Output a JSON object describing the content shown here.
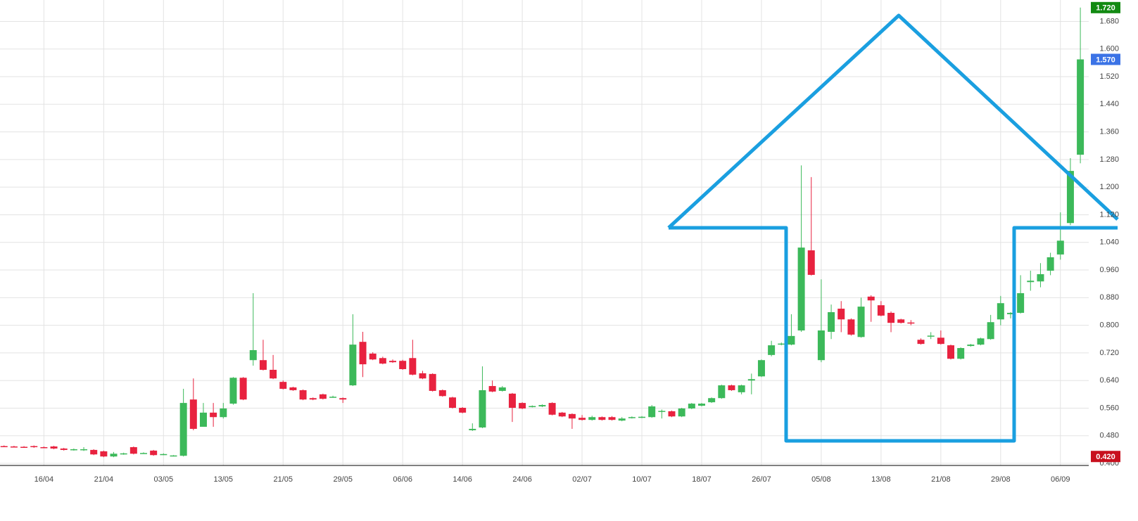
{
  "chart_data": {
    "type": "candlestick",
    "categories": [
      null,
      null,
      null,
      null,
      "16/04",
      null,
      null,
      null,
      null,
      null,
      "21/04",
      null,
      null,
      null,
      null,
      null,
      "03/05",
      null,
      null,
      null,
      null,
      null,
      "13/05",
      null,
      null,
      null,
      null,
      null,
      "21/05",
      null,
      null,
      null,
      null,
      null,
      "29/05",
      null,
      null,
      null,
      null,
      null,
      "06/06",
      null,
      null,
      null,
      null,
      null,
      "14/06",
      null,
      null,
      null,
      null,
      null,
      "24/06",
      null,
      null,
      null,
      null,
      null,
      "02/07",
      null,
      null,
      null,
      null,
      null,
      "10/07",
      null,
      null,
      null,
      null,
      null,
      "18/07",
      null,
      null,
      null,
      null,
      null,
      "26/07",
      null,
      null,
      null,
      null,
      null,
      "05/08",
      null,
      null,
      null,
      null,
      null,
      "13/08",
      null,
      null,
      null,
      null,
      null,
      "21/08",
      null,
      null,
      null,
      null,
      null,
      "29/08",
      null,
      null,
      null,
      null,
      null,
      "06/09",
      null,
      null
    ],
    "open": [
      0.45,
      0.449,
      0.448,
      0.45,
      0.447,
      0.449,
      0.443,
      0.44,
      0.44,
      0.439,
      0.435,
      0.42,
      0.427,
      0.447,
      0.43,
      0.437,
      0.426,
      0.421,
      0.422,
      0.585,
      0.506,
      0.547,
      0.534,
      0.573,
      0.648,
      0.699,
      0.699,
      0.671,
      0.636,
      0.62,
      0.612,
      0.589,
      0.6,
      0.593,
      0.589,
      0.626,
      0.752,
      0.718,
      0.705,
      0.697,
      0.697,
      0.705,
      0.661,
      0.659,
      0.612,
      0.591,
      0.561,
      0.496,
      0.504,
      0.624,
      0.61,
      0.602,
      0.575,
      0.565,
      0.565,
      0.575,
      0.547,
      0.543,
      0.532,
      0.526,
      0.534,
      0.534,
      0.524,
      0.532,
      0.534,
      0.534,
      0.55,
      0.551,
      0.536,
      0.559,
      0.567,
      0.577,
      0.589,
      0.626,
      0.606,
      0.64,
      0.652,
      0.714,
      0.746,
      0.744,
      0.785,
      1.017,
      0.699,
      0.781,
      0.848,
      0.817,
      0.766,
      0.883,
      0.858,
      0.836,
      0.817,
      0.808,
      0.758,
      0.767,
      0.764,
      0.742,
      0.703,
      0.74,
      0.744,
      0.76,
      0.817,
      0.832,
      0.836,
      0.925,
      0.927,
      0.958,
      1.005,
      1.096,
      1.294
    ],
    "high": [
      0.452,
      0.451,
      0.45,
      0.452,
      0.449,
      0.451,
      0.445,
      0.443,
      0.447,
      0.441,
      0.437,
      0.433,
      0.431,
      0.449,
      0.432,
      0.439,
      0.429,
      0.424,
      0.616,
      0.646,
      0.575,
      0.575,
      0.575,
      0.65,
      0.65,
      0.893,
      0.758,
      0.714,
      0.64,
      0.622,
      0.614,
      0.591,
      0.602,
      0.596,
      0.591,
      0.832,
      0.781,
      0.722,
      0.709,
      0.701,
      0.7,
      0.758,
      0.668,
      0.661,
      0.614,
      0.593,
      0.563,
      0.516,
      0.681,
      0.64,
      0.624,
      0.604,
      0.577,
      0.568,
      0.571,
      0.577,
      0.549,
      0.545,
      0.54,
      0.538,
      0.536,
      0.537,
      0.534,
      0.536,
      0.537,
      0.569,
      0.556,
      0.553,
      0.561,
      0.575,
      0.575,
      0.591,
      0.628,
      0.628,
      0.628,
      0.66,
      0.701,
      0.755,
      0.75,
      0.832,
      1.263,
      1.229,
      0.933,
      0.86,
      0.87,
      0.82,
      0.88,
      0.887,
      0.87,
      0.84,
      0.819,
      0.815,
      0.762,
      0.78,
      0.785,
      0.744,
      0.736,
      0.746,
      0.764,
      0.83,
      0.885,
      0.838,
      0.945,
      0.958,
      0.98,
      1.01,
      1.127,
      1.284,
      1.72
    ],
    "low": [
      0.447,
      0.446,
      0.445,
      0.445,
      0.444,
      0.441,
      0.437,
      0.437,
      0.436,
      0.424,
      0.418,
      0.418,
      0.425,
      0.426,
      0.428,
      0.422,
      0.424,
      0.42,
      0.42,
      0.496,
      0.506,
      0.506,
      0.53,
      0.57,
      0.583,
      0.683,
      0.669,
      0.644,
      0.614,
      0.61,
      0.583,
      0.583,
      0.585,
      0.59,
      0.575,
      0.624,
      0.65,
      0.699,
      0.687,
      0.691,
      0.671,
      0.655,
      0.644,
      0.608,
      0.593,
      0.559,
      0.545,
      0.494,
      0.502,
      0.606,
      0.608,
      0.52,
      0.557,
      0.562,
      0.563,
      0.539,
      0.534,
      0.5,
      0.524,
      0.524,
      0.524,
      0.524,
      0.522,
      0.53,
      0.531,
      0.532,
      0.53,
      0.534,
      0.534,
      0.557,
      0.565,
      0.575,
      0.587,
      0.61,
      0.6,
      0.6,
      0.65,
      0.71,
      0.742,
      0.742,
      0.781,
      0.944,
      0.693,
      0.76,
      0.78,
      0.77,
      0.764,
      0.81,
      0.826,
      0.78,
      0.805,
      0.8,
      0.744,
      0.76,
      0.744,
      0.701,
      0.701,
      0.738,
      0.742,
      0.758,
      0.8,
      0.82,
      0.834,
      0.9,
      0.91,
      0.945,
      0.99,
      1.09,
      1.269
    ],
    "close": [
      0.449,
      0.448,
      0.447,
      0.447,
      0.446,
      0.443,
      0.439,
      0.441,
      0.441,
      0.426,
      0.42,
      0.428,
      0.429,
      0.428,
      0.43,
      0.424,
      0.427,
      0.423,
      0.575,
      0.5,
      0.547,
      0.534,
      0.559,
      0.648,
      0.585,
      0.728,
      0.671,
      0.646,
      0.616,
      0.612,
      0.585,
      0.585,
      0.587,
      0.593,
      0.585,
      0.744,
      0.687,
      0.701,
      0.689,
      0.693,
      0.673,
      0.657,
      0.646,
      0.61,
      0.595,
      0.561,
      0.547,
      0.5,
      0.612,
      0.608,
      0.62,
      0.561,
      0.559,
      0.566,
      0.569,
      0.541,
      0.536,
      0.53,
      0.526,
      0.534,
      0.526,
      0.526,
      0.53,
      0.534,
      0.535,
      0.565,
      0.552,
      0.536,
      0.559,
      0.573,
      0.573,
      0.589,
      0.626,
      0.612,
      0.626,
      0.644,
      0.699,
      0.742,
      0.747,
      0.769,
      1.025,
      0.946,
      0.785,
      0.838,
      0.817,
      0.773,
      0.854,
      0.872,
      0.828,
      0.807,
      0.807,
      0.806,
      0.746,
      0.77,
      0.746,
      0.703,
      0.734,
      0.744,
      0.762,
      0.809,
      0.864,
      0.836,
      0.893,
      0.929,
      0.948,
      0.997,
      1.045,
      1.247,
      1.57
    ],
    "up_color": "#3cb95a",
    "down_color": "#e8223f",
    "ylim": [
      0.394,
      1.742
    ],
    "yticks": [
      {
        "value": 0.4,
        "label": "0.400"
      },
      {
        "value": 0.48,
        "label": "0.480"
      },
      {
        "value": 0.56,
        "label": "0.560"
      },
      {
        "value": 0.64,
        "label": "0.640"
      },
      {
        "value": 0.72,
        "label": "0.720"
      },
      {
        "value": 0.8,
        "label": "0.800"
      },
      {
        "value": 0.88,
        "label": "0.880"
      },
      {
        "value": 0.96,
        "label": "0.960"
      },
      {
        "value": 1.04,
        "label": "1.040"
      },
      {
        "value": 1.12,
        "label": "1.120"
      },
      {
        "value": 1.2,
        "label": "1.200"
      },
      {
        "value": 1.28,
        "label": "1.280"
      },
      {
        "value": 1.36,
        "label": "1.360"
      },
      {
        "value": 1.44,
        "label": "1.440"
      },
      {
        "value": 1.52,
        "label": "1.520"
      },
      {
        "value": 1.6,
        "label": "1.600"
      },
      {
        "value": 1.68,
        "label": "1.680"
      }
    ],
    "price_labels": [
      {
        "value": 1.72,
        "label": "1.720",
        "color": "#128a12"
      },
      {
        "value": 1.57,
        "label": "1.570",
        "color": "#3b73e6"
      },
      {
        "value": 0.42,
        "label": "0.420",
        "color": "#c8101e"
      }
    ],
    "grid": true
  }
}
